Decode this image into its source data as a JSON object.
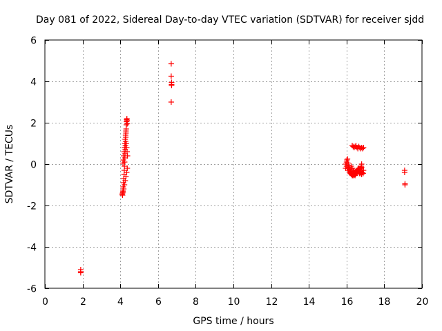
{
  "chart_data": {
    "type": "scatter",
    "title": "Day 081 of 2022, Sidereal Day-to-day VTEC variation (SDTVAR) for receiver sjdd",
    "xlabel": "GPS time / hours",
    "ylabel": "SDTVAR / TECUs",
    "xlim": [
      0,
      20
    ],
    "ylim": [
      -6,
      6
    ],
    "x_ticks": [
      0,
      2,
      4,
      6,
      8,
      10,
      12,
      14,
      16,
      18,
      20
    ],
    "y_ticks": [
      -6,
      -4,
      -2,
      0,
      2,
      4,
      6
    ],
    "grid": true,
    "marker": "+",
    "marker_color": "#ff0000",
    "series": [
      {
        "name": "SDTVAR",
        "x": [
          1.9,
          1.9,
          1.9,
          4.1,
          4.12,
          4.14,
          4.15,
          4.17,
          4.18,
          4.2,
          4.21,
          4.22,
          4.23,
          4.24,
          4.25,
          4.26,
          4.27,
          4.28,
          4.29,
          4.3,
          4.31,
          4.32,
          4.33,
          4.34,
          4.35,
          4.36,
          4.37,
          4.14,
          4.16,
          4.18,
          4.2,
          4.22,
          4.24,
          4.26,
          4.28,
          4.3,
          4.32,
          4.34,
          4.36,
          4.38,
          4.12,
          4.15,
          4.18,
          4.22,
          4.26,
          4.3,
          4.34,
          4.37,
          6.7,
          6.7,
          6.72,
          6.72,
          6.72,
          6.7,
          15.95,
          16.0,
          16.02,
          16.05,
          16.08,
          16.1,
          16.12,
          16.15,
          16.18,
          16.2,
          16.22,
          16.25,
          16.28,
          16.3,
          16.32,
          16.35,
          16.38,
          16.4,
          16.42,
          16.45,
          16.48,
          16.5,
          16.52,
          16.55,
          16.58,
          16.6,
          16.62,
          16.65,
          16.68,
          16.7,
          16.72,
          16.75,
          16.78,
          16.8,
          16.82,
          16.85,
          16.88,
          15.95,
          16.0,
          16.05,
          16.1,
          16.15,
          16.2,
          16.25,
          16.3,
          16.35,
          16.4,
          16.45,
          16.5,
          16.55,
          16.6,
          16.65,
          16.7,
          16.75,
          16.8,
          16.85,
          16.9,
          16.3,
          16.35,
          16.4,
          16.45,
          16.5,
          16.55,
          16.6,
          16.65,
          16.7,
          16.75,
          16.8,
          16.85,
          16.9,
          16.25,
          16.3,
          16.35,
          16.4,
          16.45,
          16.5,
          16.55,
          16.6,
          16.65,
          16.7,
          16.75,
          16.8,
          19.08,
          19.08,
          19.1,
          19.1
        ],
        "y": [
          -5.1,
          -5.2,
          -5.25,
          -1.45,
          -1.4,
          -1.3,
          -1.1,
          -0.9,
          -0.7,
          -0.5,
          -0.3,
          -0.1,
          0.1,
          0.3,
          0.5,
          0.7,
          0.9,
          1.1,
          1.3,
          1.5,
          1.7,
          1.9,
          2.05,
          2.15,
          2.2,
          2.1,
          1.95,
          0.05,
          0.2,
          0.4,
          0.6,
          0.8,
          1.0,
          1.2,
          1.4,
          1.6,
          1.0,
          0.8,
          0.6,
          0.4,
          -1.5,
          -1.35,
          -1.2,
          -1.0,
          -0.8,
          -0.6,
          -0.4,
          -0.2,
          4.85,
          4.25,
          3.95,
          3.85,
          3.8,
          3.0,
          -0.2,
          0.1,
          0.2,
          0.25,
          0.05,
          -0.05,
          -0.15,
          -0.25,
          -0.3,
          -0.35,
          -0.4,
          -0.45,
          -0.5,
          -0.48,
          -0.52,
          -0.55,
          -0.5,
          -0.45,
          -0.52,
          -0.55,
          -0.5,
          -0.45,
          -0.4,
          -0.35,
          -0.3,
          -0.25,
          -0.2,
          -0.35,
          -0.45,
          -0.4,
          -0.3,
          -0.2,
          -0.1,
          0.0,
          -0.3,
          -0.4,
          -0.45,
          0.0,
          -0.1,
          -0.2,
          -0.3,
          -0.4,
          -0.45,
          -0.5,
          -0.55,
          -0.55,
          -0.5,
          -0.45,
          -0.4,
          -0.35,
          -0.3,
          -0.25,
          -0.35,
          -0.45,
          -0.5,
          -0.4,
          -0.3,
          0.9,
          0.85,
          0.8,
          0.85,
          0.9,
          0.8,
          0.75,
          0.85,
          0.8,
          0.75,
          0.8,
          0.75,
          0.8,
          -0.1,
          -0.2,
          -0.3,
          -0.35,
          -0.4,
          -0.45,
          -0.4,
          -0.35,
          -0.3,
          -0.25,
          -0.2,
          -0.15,
          -0.3,
          -0.4,
          -0.95,
          -1.0
        ]
      }
    ]
  }
}
